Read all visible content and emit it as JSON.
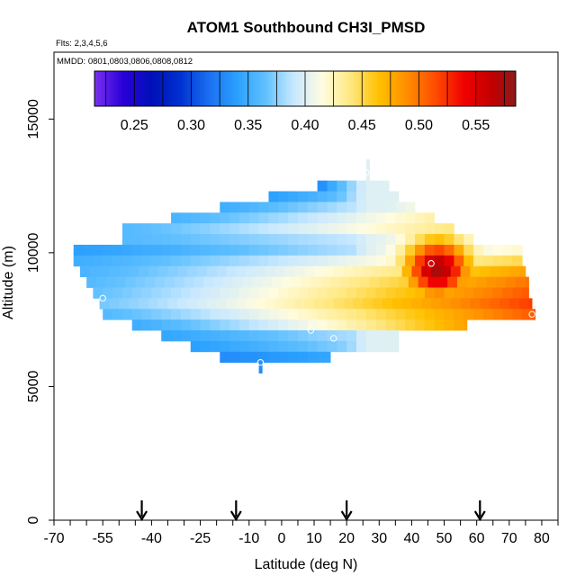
{
  "chart_data": {
    "type": "heatmap",
    "title": "ATOM1 Southbound CH3I_PMSD",
    "flights_label": "Flts: 2,3,4,5,6",
    "dates_label": "MMDD: 0801,0803,0806,0808,0812",
    "xlabel": "Latitude (deg N)",
    "ylabel": "Altitude (m)",
    "xlim": [
      -70,
      85
    ],
    "ylim": [
      0,
      17500
    ],
    "x_ticks_labeled": [
      "-70",
      "-55",
      "-40",
      "-25",
      "-10",
      "0",
      "10",
      "20",
      "30",
      "40",
      "50",
      "60",
      "70",
      "80"
    ],
    "x_tick_values": [
      -70,
      -55,
      -40,
      -25,
      -10,
      0,
      10,
      20,
      30,
      40,
      50,
      60,
      70,
      80
    ],
    "x_minor_step": 5,
    "y_ticks_labeled": [
      "0",
      "5000",
      "10000",
      "15000"
    ],
    "y_tick_values": [
      0,
      5000,
      10000,
      15000
    ],
    "colorbar": {
      "min": 0.215,
      "max": 0.585,
      "tick_labels": [
        "0.25",
        "0.30",
        "0.35",
        "0.40",
        "0.45",
        "0.50",
        "0.55"
      ],
      "tick_values": [
        0.25,
        0.3,
        0.35,
        0.4,
        0.45,
        0.5,
        0.55
      ],
      "color_stops": [
        {
          "v": 0.215,
          "c": "#7a2ff0"
        },
        {
          "v": 0.24,
          "c": "#2a00d8"
        },
        {
          "v": 0.265,
          "c": "#0010b8"
        },
        {
          "v": 0.29,
          "c": "#0030d0"
        },
        {
          "v": 0.315,
          "c": "#1a6ef0"
        },
        {
          "v": 0.34,
          "c": "#2aa0ff"
        },
        {
          "v": 0.365,
          "c": "#60c0ff"
        },
        {
          "v": 0.39,
          "c": "#c8e8ff"
        },
        {
          "v": 0.415,
          "c": "#fffce0"
        },
        {
          "v": 0.44,
          "c": "#ffe880"
        },
        {
          "v": 0.465,
          "c": "#ffc000"
        },
        {
          "v": 0.49,
          "c": "#ff8c00"
        },
        {
          "v": 0.515,
          "c": "#ff4a00"
        },
        {
          "v": 0.54,
          "c": "#f00000"
        },
        {
          "v": 0.565,
          "c": "#c00000"
        },
        {
          "v": 0.585,
          "c": "#8b1a1a"
        }
      ]
    },
    "flight_markers_lat": [
      -43,
      -14,
      20,
      61
    ],
    "cell_grid": {
      "lat_step": 3,
      "alt_step": 400
    },
    "rows": [
      {
        "alt": 13300,
        "lat_start": 26,
        "lat_end": 27,
        "left": 0.33,
        "right": 0.33
      },
      {
        "alt": 12900,
        "lat_start": 26,
        "lat_end": 27,
        "left": 0.33,
        "right": 0.33
      },
      {
        "alt": 12500,
        "lat_start": 11,
        "lat_end": 33,
        "left": 0.33,
        "right": 0.34
      },
      {
        "alt": 12100,
        "lat_start": -4,
        "lat_end": 36,
        "left": 0.34,
        "right": 0.39
      },
      {
        "alt": 11700,
        "lat_start": -19,
        "lat_end": 41,
        "left": 0.35,
        "right": 0.41
      },
      {
        "alt": 11300,
        "lat_start": -34,
        "lat_end": 47,
        "left": 0.355,
        "right": 0.43
      },
      {
        "alt": 10900,
        "lat_start": -49,
        "lat_end": 53,
        "left": 0.36,
        "right": 0.44
      },
      {
        "alt": 10500,
        "lat_start": -49,
        "lat_end": 59,
        "left": 0.36,
        "right": 0.41
      },
      {
        "alt": 10100,
        "lat_start": -64,
        "lat_end": 74,
        "left": 0.34,
        "right": 0.42
      },
      {
        "alt": 9700,
        "lat_start": -64,
        "lat_end": 74,
        "left": 0.35,
        "right": 0.45
      },
      {
        "alt": 9300,
        "lat_start": -62,
        "lat_end": 75,
        "left": 0.355,
        "right": 0.48
      },
      {
        "alt": 8900,
        "lat_start": -60,
        "lat_end": 76,
        "left": 0.36,
        "right": 0.5
      },
      {
        "alt": 8500,
        "lat_start": -58,
        "lat_end": 76,
        "left": 0.365,
        "right": 0.51
      },
      {
        "alt": 8100,
        "lat_start": -56,
        "lat_end": 77,
        "left": 0.37,
        "right": 0.52
      },
      {
        "alt": 7700,
        "lat_start": -55,
        "lat_end": 78,
        "left": 0.36,
        "right": 0.51
      },
      {
        "alt": 7300,
        "lat_start": -46,
        "lat_end": 57,
        "left": 0.35,
        "right": 0.48
      },
      {
        "alt": 6900,
        "lat_start": -37,
        "lat_end": 36,
        "left": 0.345,
        "right": 0.395
      },
      {
        "alt": 6500,
        "lat_start": -28,
        "lat_end": 36,
        "left": 0.34,
        "right": 0.39
      },
      {
        "alt": 6100,
        "lat_start": -19,
        "lat_end": 15,
        "left": 0.33,
        "right": 0.345
      },
      {
        "alt": 5700,
        "lat_start": -7,
        "lat_end": -6,
        "left": 0.33,
        "right": 0.33
      }
    ],
    "plume": {
      "center_lat": 48,
      "center_alt": 9400,
      "peak": 0.575,
      "lat_sigma": 10,
      "alt_sigma": 1100
    },
    "open_circle_points": [
      {
        "lat": -65,
        "alt": 10200
      },
      {
        "lat": -55,
        "alt": 8300
      },
      {
        "lat": 9,
        "alt": 7100
      },
      {
        "lat": 16,
        "alt": 6800
      },
      {
        "lat": 46,
        "alt": 9600
      },
      {
        "lat": 77,
        "alt": 7700
      },
      {
        "lat": 26,
        "alt": 13000
      },
      {
        "lat": -6.5,
        "alt": 5900
      }
    ]
  }
}
